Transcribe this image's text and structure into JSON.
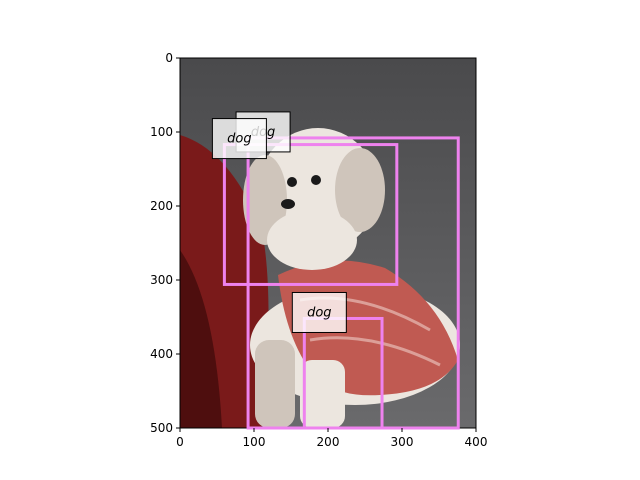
{
  "figure": {
    "image_extent": {
      "width": 400,
      "height": 500
    },
    "x_ticks": [
      0,
      100,
      200,
      300,
      400
    ],
    "y_ticks": [
      0,
      100,
      200,
      300,
      400,
      500
    ],
    "x_tick_labels": [
      "0",
      "100",
      "200",
      "300",
      "400"
    ],
    "y_tick_labels": [
      "0",
      "100",
      "200",
      "300",
      "400",
      "500"
    ],
    "box_color": "#ee82ee",
    "label_box_color": "#ffffff",
    "detections": [
      {
        "label": "dog",
        "x1": 92,
        "y1": 108,
        "x2": 376,
        "y2": 500
      },
      {
        "label": "dog",
        "x1": 60,
        "y1": 117,
        "x2": 293,
        "y2": 306
      },
      {
        "label": "dog",
        "x1": 168,
        "y1": 352,
        "x2": 273,
        "y2": 500
      }
    ],
    "photo_palette": {
      "background": "#4a4a4c",
      "background_light": "#6a6a6c",
      "chair": "#7a1a1a",
      "chair_dark": "#3c0a0a",
      "dog_fur": "#ece6df",
      "dog_fur_shadow": "#cfc5bb",
      "sweater": "#c05a52",
      "sweater_light": "#e2b0aa",
      "eye": "#1a1a1a"
    }
  }
}
